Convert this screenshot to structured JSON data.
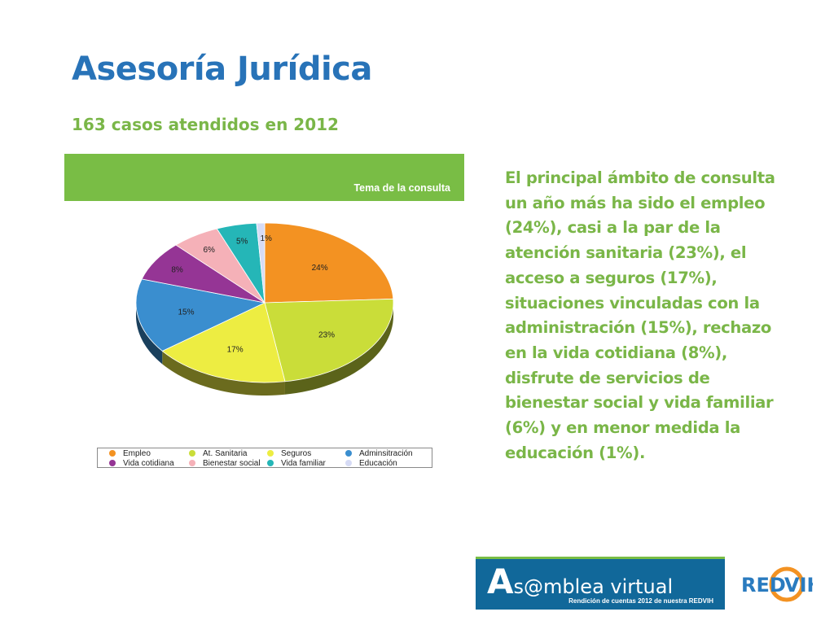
{
  "page": {
    "title": "Asesoría Jurídica",
    "subtitle": "163 casos atendidos en 2012"
  },
  "description_lines": [
    "El principal ámbito de consulta",
    "un año más ha sido el empleo",
    "(24%), casi a la par de la",
    "atención sanitaria  (23%), el",
    "acceso a seguros (17%),",
    "situaciones vinculadas con la",
    "administración (15%), rechazo",
    "en la vida cotidiana (8%),",
    "disfrute de servicios de",
    "bienestar social y vida familiar",
    "(6%) y en menor medida la",
    "educación (1%)."
  ],
  "chart_data": {
    "type": "pie",
    "title": "Tema de la consulta",
    "legend_position": "bottom",
    "slices": [
      {
        "name": "Empleo",
        "value": 24,
        "label": "24%",
        "color": "#f39222"
      },
      {
        "name": "At. Sanitaria",
        "value": 23,
        "label": "23%",
        "color": "#cadd39"
      },
      {
        "name": "Seguros",
        "value": 17,
        "label": "17%",
        "color": "#eded42"
      },
      {
        "name": "Adminsitración",
        "value": 15,
        "label": "15%",
        "color": "#3a8ecf"
      },
      {
        "name": "Vida cotidiana",
        "value": 8,
        "label": "8%",
        "color": "#953595"
      },
      {
        "name": "Bienestar social",
        "value": 6,
        "label": "6%",
        "color": "#f5b1b8"
      },
      {
        "name": "Vida familiar",
        "value": 5,
        "label": "5%",
        "color": "#25b6b7"
      },
      {
        "name": "Educación",
        "value": 1,
        "label": "1%",
        "color": "#d6dbf5"
      }
    ]
  },
  "logos": {
    "asamblea": {
      "text_a": "A",
      "text_rest": "s@mblea virtual",
      "tagline": "Rendición de cuentas 2012 de nuestra REDVIH",
      "bg_color": "#11689a",
      "accent_color": "#79bd45"
    },
    "redvih": {
      "text": "REDVIH",
      "color_red": "#2a7bbf",
      "color_ring": "#f39222"
    }
  }
}
